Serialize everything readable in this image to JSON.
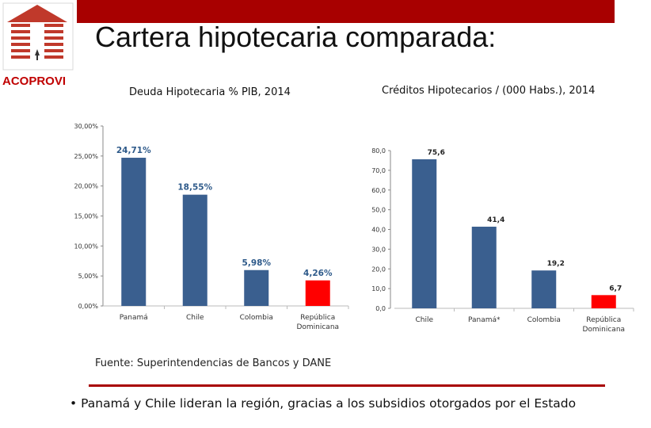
{
  "header": {
    "title": "Cartera hipotecaria comparada:",
    "logo_text": "ACOPROVI",
    "accent_color": "#a80000"
  },
  "chart_data": [
    {
      "type": "bar",
      "title": "Deuda Hipotecaria % PIB, 2014",
      "categories": [
        "Panamá",
        "Chile",
        "Colombia",
        "República Dominicana"
      ],
      "category_lines": [
        [
          "Panamá"
        ],
        [
          "Chile"
        ],
        [
          "Colombia"
        ],
        [
          "República",
          "Dominicana"
        ]
      ],
      "values": [
        24.71,
        18.55,
        5.98,
        4.26
      ],
      "value_labels": [
        "24,71%",
        "18,55%",
        "5,98%",
        "4,26%"
      ],
      "colors": [
        "#3a5f8f",
        "#3a5f8f",
        "#3a5f8f",
        "#ff0000"
      ],
      "ylim": [
        0,
        30
      ],
      "ticks": [
        0,
        5,
        10,
        15,
        20,
        25,
        30
      ],
      "tick_labels": [
        "0,00%",
        "5,00%",
        "10,00%",
        "15,00%",
        "20,00%",
        "25,00%",
        "30,00%"
      ],
      "xlabel": "",
      "ylabel": ""
    },
    {
      "type": "bar",
      "title": "Créditos Hipotecarios / (000 Habs.), 2014",
      "categories": [
        "Chile",
        "Panamá*",
        "Colombia",
        "República Dominicana"
      ],
      "category_lines": [
        [
          "Chile"
        ],
        [
          "Panamá*"
        ],
        [
          "Colombia"
        ],
        [
          "República",
          "Dominicana"
        ]
      ],
      "values": [
        75.6,
        41.4,
        19.2,
        6.7
      ],
      "value_labels": [
        "75,6",
        "41,4",
        "19,2",
        "6,7"
      ],
      "colors": [
        "#3a5f8f",
        "#3a5f8f",
        "#3a5f8f",
        "#ff0000"
      ],
      "ylim": [
        0,
        80
      ],
      "ticks": [
        0,
        10,
        20,
        30,
        40,
        50,
        60,
        70,
        80
      ],
      "tick_labels": [
        "0,0",
        "10,0",
        "20,0",
        "30,0",
        "40,0",
        "50,0",
        "60,0",
        "70,0",
        "80,0"
      ],
      "xlabel": "",
      "ylabel": ""
    }
  ],
  "footer": {
    "source": "Fuente: Superintendencias de Bancos y DANE",
    "bullet_char": "•",
    "bullet_text": "Panamá y Chile lideran la región, gracias a los subsidios otorgados por el Estado"
  }
}
